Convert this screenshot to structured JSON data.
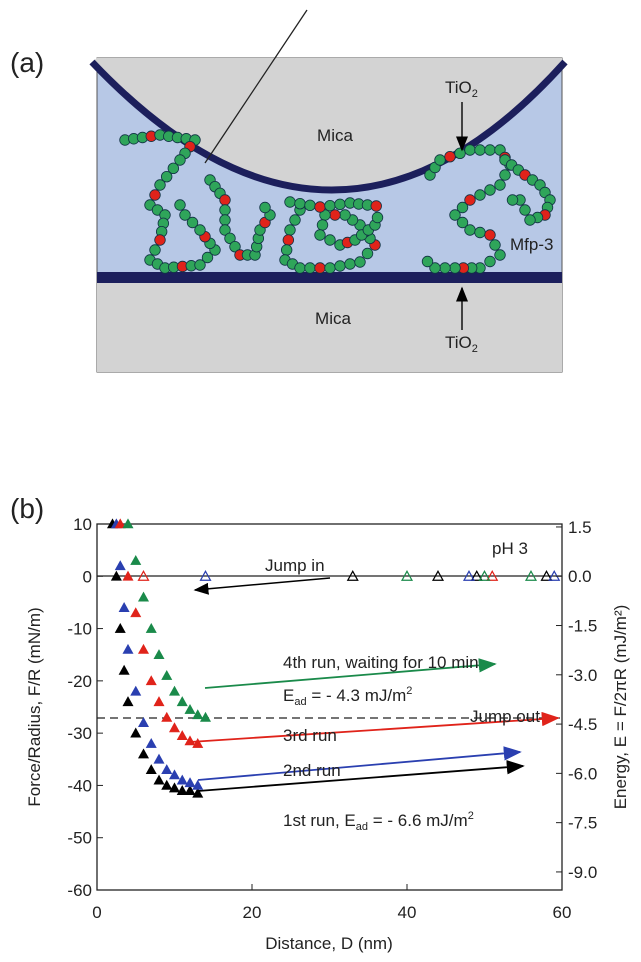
{
  "figure": {
    "panel_label": "(a)",
    "top_mica": "Mica",
    "top_tio2": {
      "text": "TiO",
      "sub": "2"
    },
    "mfp": "Mfp-3",
    "bottom_mica": "Mica",
    "bottom_tio2": {
      "text": "TiO",
      "sub": "2"
    }
  },
  "chart_data": {
    "type": "scatter",
    "panel_label": "(b)",
    "x_label": "Distance, D (nm)",
    "y_label": "Force/Radius, F/R (mN/m)",
    "y2_label": "Energy, E = F/2πR (mJ/m²)",
    "xlim": [
      0,
      60
    ],
    "xticks": [
      0,
      20,
      40,
      60
    ],
    "ylim": [
      -60,
      10
    ],
    "yticks": [
      10,
      0,
      -10,
      -20,
      -30,
      -40,
      -50,
      -60
    ],
    "y2lim": [
      -9.55,
      1.59
    ],
    "y2ticks": [
      1.5,
      {
        "value": 0,
        "label": "0.0"
      },
      -1.5,
      {
        "value": -3,
        "label": "-3.0"
      },
      -4.5,
      {
        "value": -6,
        "label": "-6.0"
      },
      -7.5,
      {
        "value": -9,
        "label": "-9.0"
      }
    ],
    "series": [
      {
        "color": "#000000",
        "marker": "filled",
        "x": [
          2,
          2.5,
          3,
          3.5,
          4,
          5,
          6,
          7,
          8,
          9,
          10,
          11,
          12,
          13
        ],
        "values": [
          10,
          0,
          -10,
          -18,
          -24,
          -30,
          -34,
          -37,
          -39,
          -40,
          -40.5,
          -41,
          -41,
          -41.5
        ]
      },
      {
        "color": "#2a3fb0",
        "marker": "filled",
        "x": [
          2.5,
          3,
          3.5,
          4,
          5,
          6,
          7,
          8,
          9,
          10,
          11,
          12,
          13
        ],
        "values": [
          10,
          2,
          -6,
          -14,
          -22,
          -28,
          -32,
          -35,
          -37,
          -38,
          -39,
          -39.5,
          -40
        ]
      },
      {
        "color": "#e0231a",
        "marker": "filled",
        "x": [
          3,
          4,
          5,
          6,
          7,
          8,
          9,
          10,
          11,
          12,
          13
        ],
        "values": [
          10,
          0,
          -7,
          -14,
          -20,
          -24,
          -27,
          -29,
          -30.5,
          -31.5,
          -32
        ]
      },
      {
        "color": "#1a8a4a",
        "marker": "filled",
        "x": [
          4,
          5,
          6,
          7,
          8,
          9,
          10,
          11,
          12,
          13,
          14
        ],
        "values": [
          10,
          3,
          -4,
          -10,
          -15,
          -19,
          -22,
          -24,
          -25.5,
          -26.5,
          -27
        ]
      },
      {
        "color": "#000000",
        "marker": "open",
        "x": [
          33,
          44,
          49,
          58
        ],
        "values": [
          0,
          0,
          0,
          0
        ]
      },
      {
        "color": "#2a3fb0",
        "marker": "open",
        "x": [
          14,
          48,
          59
        ],
        "values": [
          0,
          0,
          0
        ]
      },
      {
        "color": "#e0231a",
        "marker": "open",
        "x": [
          6,
          51
        ],
        "values": [
          0,
          0
        ]
      },
      {
        "color": "#1a8a4a",
        "marker": "open",
        "x": [
          40,
          50,
          56
        ],
        "values": [
          0,
          0,
          0
        ]
      }
    ],
    "annotations": [
      {
        "text": "Jump in"
      },
      {
        "text": "pH 3"
      },
      {
        "text": "4th run, waiting for 10 min"
      },
      {
        "text": "E",
        "sub": "ad",
        "rest": " = - 4.3 mJ/m",
        "sup": "2"
      },
      {
        "text": "3rd run"
      },
      {
        "text": "Jump out"
      },
      {
        "text": "2nd run"
      },
      {
        "text": "1st run, E",
        "sub": "ad",
        "rest": " = - 6.6 mJ/m",
        "sup": "2"
      }
    ]
  }
}
